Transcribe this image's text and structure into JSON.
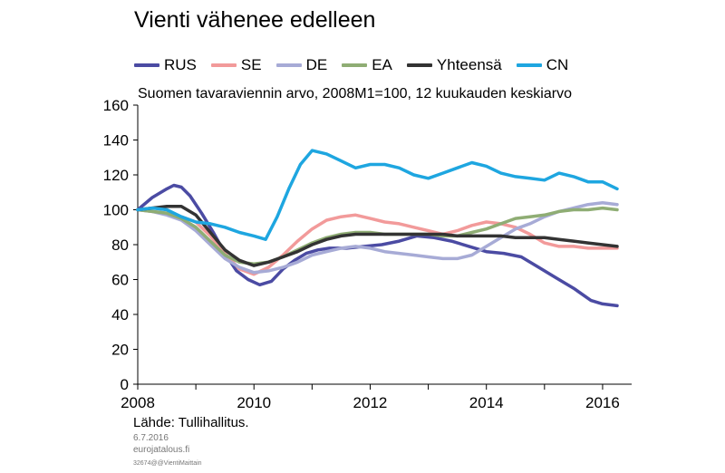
{
  "title": "Vienti vähenee edelleen",
  "footer": {
    "source": "Lähde: Tullihallitus.",
    "date": "6.7.2016",
    "site": "eurojatalous.fi",
    "code": "32674@@VientiMaittain"
  },
  "chart_data": {
    "type": "line",
    "title": "Suomen tavaraviennin arvo, 2008M1=100, 12 kuukauden keskiarvo",
    "xlabel": "",
    "ylabel": "",
    "ylim": [
      0,
      160
    ],
    "xlim": [
      2008,
      2016.5
    ],
    "yticks": [
      0,
      20,
      40,
      60,
      80,
      100,
      120,
      140,
      160
    ],
    "xticks": [
      2008,
      2010,
      2012,
      2014,
      2016
    ],
    "legend_position": "top",
    "grid": false,
    "series": [
      {
        "name": "RUS",
        "color": "#4b4ba3",
        "x": [
          2008.0,
          2008.25,
          2008.5,
          2008.62,
          2008.75,
          2008.9,
          2009.1,
          2009.3,
          2009.5,
          2009.7,
          2009.9,
          2010.1,
          2010.3,
          2010.5,
          2010.7,
          2010.9,
          2011.1,
          2011.3,
          2011.6,
          2011.9,
          2012.2,
          2012.5,
          2012.8,
          2013.1,
          2013.4,
          2013.7,
          2014.0,
          2014.3,
          2014.6,
          2014.9,
          2015.2,
          2015.5,
          2015.8,
          2016.0,
          2016.25
        ],
        "y": [
          100,
          107,
          112,
          114,
          113,
          108,
          98,
          87,
          75,
          65,
          60,
          57,
          59,
          66,
          71,
          75,
          77,
          78,
          78,
          79,
          80,
          82,
          85,
          84,
          82,
          79,
          76,
          75,
          73,
          67,
          61,
          55,
          48,
          46,
          45
        ]
      },
      {
        "name": "SE",
        "color": "#f29a9a",
        "x": [
          2008.0,
          2008.25,
          2008.5,
          2008.75,
          2009.0,
          2009.25,
          2009.5,
          2009.75,
          2010.0,
          2010.25,
          2010.5,
          2010.75,
          2011.0,
          2011.25,
          2011.5,
          2011.75,
          2012.0,
          2012.25,
          2012.5,
          2012.75,
          2013.0,
          2013.25,
          2013.5,
          2013.75,
          2014.0,
          2014.25,
          2014.5,
          2014.75,
          2015.0,
          2015.25,
          2015.5,
          2015.75,
          2016.0,
          2016.25
        ],
        "y": [
          100,
          99,
          98,
          96,
          93,
          85,
          75,
          66,
          63,
          67,
          74,
          82,
          89,
          94,
          96,
          97,
          95,
          93,
          92,
          90,
          88,
          86,
          88,
          91,
          93,
          92,
          90,
          86,
          81,
          79,
          79,
          78,
          78,
          78
        ]
      },
      {
        "name": "DE",
        "color": "#a7abd6",
        "x": [
          2008.0,
          2008.25,
          2008.5,
          2008.75,
          2009.0,
          2009.25,
          2009.5,
          2009.75,
          2010.0,
          2010.25,
          2010.5,
          2010.75,
          2011.0,
          2011.25,
          2011.5,
          2011.75,
          2012.0,
          2012.25,
          2012.5,
          2012.75,
          2013.0,
          2013.25,
          2013.5,
          2013.75,
          2014.0,
          2014.25,
          2014.5,
          2014.75,
          2015.0,
          2015.25,
          2015.5,
          2015.75,
          2016.0,
          2016.25
        ],
        "y": [
          100,
          99,
          97,
          94,
          88,
          80,
          72,
          67,
          64,
          65,
          67,
          70,
          74,
          76,
          78,
          79,
          78,
          76,
          75,
          74,
          73,
          72,
          72,
          74,
          79,
          84,
          89,
          92,
          96,
          99,
          101,
          103,
          104,
          103
        ]
      },
      {
        "name": "EA",
        "color": "#8fad74",
        "x": [
          2008.0,
          2008.25,
          2008.5,
          2008.75,
          2009.0,
          2009.25,
          2009.5,
          2009.75,
          2010.0,
          2010.25,
          2010.5,
          2010.75,
          2011.0,
          2011.25,
          2011.5,
          2011.75,
          2012.0,
          2012.25,
          2012.5,
          2012.75,
          2013.0,
          2013.25,
          2013.5,
          2013.75,
          2014.0,
          2014.25,
          2014.5,
          2014.75,
          2015.0,
          2015.25,
          2015.5,
          2015.75,
          2016.0,
          2016.25
        ],
        "y": [
          100,
          99,
          98,
          95,
          90,
          82,
          74,
          70,
          69,
          70,
          73,
          77,
          81,
          84,
          86,
          87,
          87,
          86,
          86,
          86,
          86,
          85,
          85,
          87,
          89,
          92,
          95,
          96,
          97,
          99,
          100,
          100,
          101,
          100
        ]
      },
      {
        "name": "Yhteensä",
        "color": "#333333",
        "x": [
          2008.0,
          2008.25,
          2008.5,
          2008.75,
          2009.0,
          2009.25,
          2009.5,
          2009.75,
          2010.0,
          2010.25,
          2010.5,
          2010.75,
          2011.0,
          2011.25,
          2011.5,
          2011.75,
          2012.0,
          2012.25,
          2012.5,
          2012.75,
          2013.0,
          2013.25,
          2013.5,
          2013.75,
          2014.0,
          2014.25,
          2014.5,
          2014.75,
          2015.0,
          2015.25,
          2015.5,
          2015.75,
          2016.0,
          2016.25
        ],
        "y": [
          100,
          101,
          102,
          102,
          97,
          87,
          77,
          71,
          68,
          70,
          73,
          76,
          80,
          83,
          85,
          86,
          86,
          86,
          86,
          86,
          86,
          86,
          85,
          85,
          85,
          85,
          84,
          84,
          84,
          83,
          82,
          81,
          80,
          79
        ]
      },
      {
        "name": "CN",
        "color": "#1ea6e0",
        "x": [
          2008.0,
          2008.25,
          2008.5,
          2008.75,
          2009.0,
          2009.25,
          2009.5,
          2009.75,
          2010.0,
          2010.2,
          2010.4,
          2010.6,
          2010.8,
          2011.0,
          2011.25,
          2011.5,
          2011.75,
          2012.0,
          2012.25,
          2012.5,
          2012.75,
          2013.0,
          2013.25,
          2013.5,
          2013.75,
          2014.0,
          2014.25,
          2014.5,
          2014.75,
          2015.0,
          2015.25,
          2015.5,
          2015.75,
          2016.0,
          2016.25
        ],
        "y": [
          100,
          101,
          100,
          96,
          93,
          92,
          90,
          87,
          85,
          83,
          96,
          112,
          126,
          134,
          132,
          128,
          124,
          126,
          126,
          124,
          120,
          118,
          121,
          124,
          127,
          125,
          121,
          119,
          118,
          117,
          121,
          119,
          116,
          116,
          112
        ]
      }
    ]
  }
}
